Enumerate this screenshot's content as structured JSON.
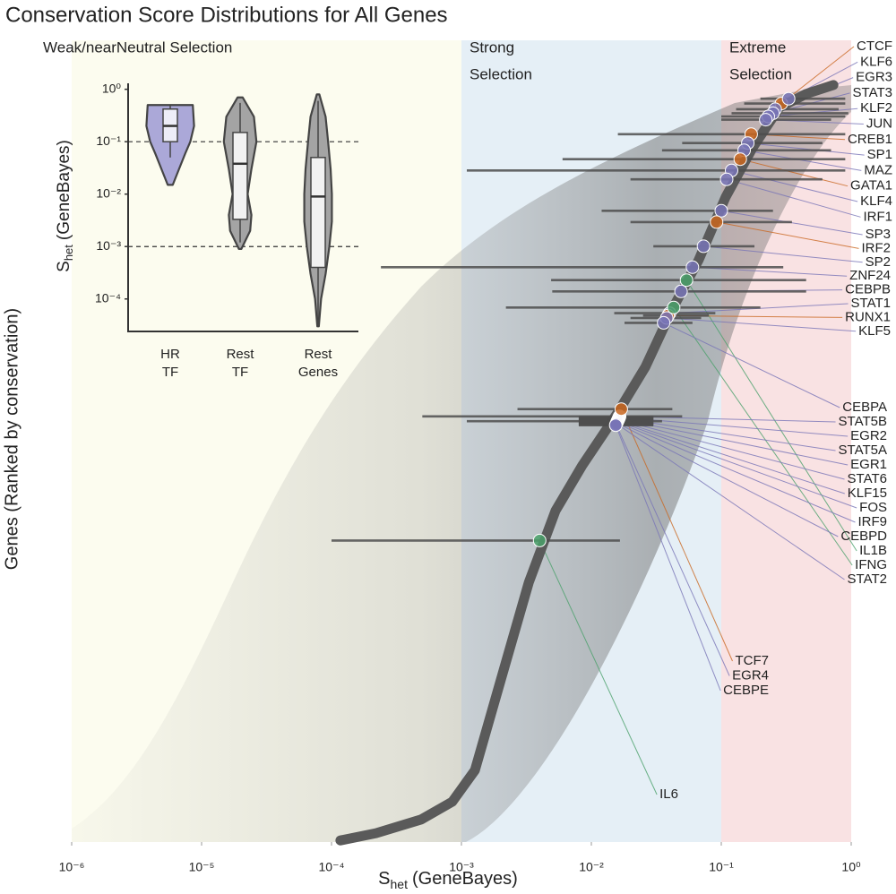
{
  "chart_data": [
    {
      "type": "scatter",
      "title": "Conservation Score Distributions for All Genes",
      "xlabel": {
        "symbol": "S",
        "subscript": "het",
        "text": "(GeneBayes)"
      },
      "ylabel": "Genes (Ranked by conservation)",
      "log_x": true,
      "xlim": [
        1e-06,
        1
      ],
      "xticks": [
        {
          "value": 1e-06,
          "label": "10⁻⁶"
        },
        {
          "value": 1e-05,
          "label": "10⁻⁵"
        },
        {
          "value": 0.0001,
          "label": "10⁻⁴"
        },
        {
          "value": 0.001,
          "label": "10⁻³"
        },
        {
          "value": 0.01,
          "label": "10⁻²"
        },
        {
          "value": 0.1,
          "label": "10⁻¹"
        },
        {
          "value": 1,
          "label": "10⁰"
        }
      ],
      "ylim": [
        0,
        1
      ],
      "regions": [
        {
          "label": [
            "Weak/nearNeutral Selection"
          ],
          "range": [
            1e-06,
            0.001
          ],
          "color": "#fcfcef"
        },
        {
          "label": [
            "Strong",
            "Selection"
          ],
          "range": [
            0.001,
            0.1
          ],
          "color": "#e5eff6"
        },
        {
          "label": [
            "Extreme",
            "Selection"
          ],
          "range": [
            0.1,
            1
          ],
          "color": "#f9e2e3"
        }
      ],
      "curve": {
        "color": "#5a5a5a",
        "x": [
          0.000117,
          0.00022,
          0.00049,
          0.00085,
          0.00127,
          0.002,
          0.0033,
          0.0053,
          0.0085,
          0.016,
          0.026,
          0.042,
          0.067,
          0.108,
          0.174,
          0.28,
          0.45,
          0.73
        ],
        "y": [
          0.002,
          0.011,
          0.028,
          0.05,
          0.089,
          0.2,
          0.322,
          0.411,
          0.467,
          0.533,
          0.589,
          0.661,
          0.722,
          0.8,
          0.861,
          0.911,
          0.928,
          0.939
        ]
      },
      "points": [
        {
          "name": "CTCF",
          "color": "#c9661f",
          "x": 0.29,
          "y": 0.916,
          "xerr": [
            0.15,
            0.9
          ]
        },
        {
          "name": "KLF6",
          "color": "#7874b6",
          "x": 0.33,
          "y": 0.922,
          "xerr": [
            0.2,
            0.9
          ]
        },
        {
          "name": "EGR3",
          "color": "#7874b6",
          "x": 0.26,
          "y": 0.909,
          "xerr": [
            0.13,
            0.8
          ]
        },
        {
          "name": "STAT3",
          "color": "#7874b6",
          "x": 0.25,
          "y": 0.904,
          "xerr": [
            0.12,
            0.95
          ]
        },
        {
          "name": "KLF2",
          "color": "#7874b6",
          "x": 0.23,
          "y": 0.9,
          "xerr": [
            0.1,
            0.9
          ]
        },
        {
          "name": "JUN",
          "color": "#7874b6",
          "x": 0.22,
          "y": 0.896,
          "xerr": [
            0.1,
            0.7
          ]
        },
        {
          "name": "CREB1",
          "color": "#c9661f",
          "x": 0.17,
          "y": 0.878,
          "xerr": [
            0.016,
            0.9
          ]
        },
        {
          "name": "SP1",
          "color": "#7874b6",
          "x": 0.16,
          "y": 0.867,
          "xerr": [
            0.05,
            0.6
          ]
        },
        {
          "name": "MAZ",
          "color": "#7874b6",
          "x": 0.15,
          "y": 0.858,
          "xerr": [
            0.035,
            0.7
          ]
        },
        {
          "name": "GATA1",
          "color": "#c9661f",
          "x": 0.14,
          "y": 0.847,
          "xerr": [
            0.006,
            0.9
          ]
        },
        {
          "name": "KLF4",
          "color": "#7874b6",
          "x": 0.12,
          "y": 0.833,
          "xerr": [
            0.0011,
            0.9
          ]
        },
        {
          "name": "IRF1",
          "color": "#7874b6",
          "x": 0.11,
          "y": 0.822,
          "xerr": [
            0.02,
            0.6
          ]
        },
        {
          "name": "SP3",
          "color": "#7874b6",
          "x": 0.1,
          "y": 0.783,
          "xerr": [
            0.012,
            0.25
          ]
        },
        {
          "name": "IRF2",
          "color": "#c9661f",
          "x": 0.092,
          "y": 0.769,
          "xerr": [
            0.02,
            0.35
          ]
        },
        {
          "name": "SP2",
          "color": "#7874b6",
          "x": 0.073,
          "y": 0.739,
          "xerr": [
            0.03,
            0.18
          ]
        },
        {
          "name": "ZNF24",
          "color": "#7874b6",
          "x": 0.06,
          "y": 0.713,
          "xerr": [
            0.00024,
            0.3
          ]
        },
        {
          "name": "CEBPB",
          "color": "#7874b6",
          "x": 0.049,
          "y": 0.683,
          "xerr": [
            0.005,
            0.45
          ]
        },
        {
          "name": "STAT1",
          "color": "#7874b6",
          "x": 0.04,
          "y": 0.656,
          "xerr": [
            0.015,
            0.09
          ]
        },
        {
          "name": "RUNX1",
          "color": "#c9661f",
          "x": 0.039,
          "y": 0.653,
          "xerr": [
            0.025,
            0.08
          ]
        },
        {
          "name": "KLF5",
          "color": "#7874b6",
          "x": 0.038,
          "y": 0.65,
          "xerr": [
            0.02,
            0.07
          ]
        },
        {
          "name": "CEBPA",
          "color": "#7874b6",
          "x": 0.036,
          "y": 0.644,
          "xerr": [
            0.018,
            0.06
          ]
        },
        {
          "name": "STAT5B",
          "color": "#7874b6",
          "x": 0.0165,
          "y": 0.528,
          "xerr": [
            0.0005,
            0.05
          ]
        },
        {
          "name": "EGR2",
          "color": "#7874b6",
          "x": 0.0164,
          "y": 0.527,
          "xerr": [
            0.008,
            0.03
          ]
        },
        {
          "name": "STAT5A",
          "color": "#7874b6",
          "x": 0.0163,
          "y": 0.526,
          "xerr": [
            0.008,
            0.03
          ]
        },
        {
          "name": "EGR1",
          "color": "#7874b6",
          "x": 0.0162,
          "y": 0.525,
          "xerr": [
            0.008,
            0.03
          ]
        },
        {
          "name": "STAT6",
          "color": "#7874b6",
          "x": 0.0161,
          "y": 0.524,
          "xerr": [
            0.008,
            0.03
          ]
        },
        {
          "name": "KLF15",
          "color": "#7874b6",
          "x": 0.016,
          "y": 0.523,
          "xerr": [
            0.008,
            0.03
          ]
        },
        {
          "name": "FOS",
          "color": "#7874b6",
          "x": 0.0159,
          "y": 0.522,
          "xerr": [
            0.0011,
            0.035
          ]
        },
        {
          "name": "IRF9",
          "color": "#7874b6",
          "x": 0.0158,
          "y": 0.521,
          "xerr": [
            0.008,
            0.03
          ]
        },
        {
          "name": "CEBPD",
          "color": "#7874b6",
          "x": 0.0157,
          "y": 0.52,
          "xerr": [
            0.008,
            0.03
          ]
        },
        {
          "name": "IL1B",
          "color": "#4aa06a",
          "x": 0.054,
          "y": 0.697,
          "xerr": [
            0.0049,
            0.45
          ]
        },
        {
          "name": "IFNG",
          "color": "#4aa06a",
          "x": 0.043,
          "y": 0.663,
          "xerr": [
            0.0022,
            0.2
          ]
        },
        {
          "name": "STAT2",
          "color": "#7874b6",
          "x": 0.0156,
          "y": 0.519,
          "xerr": [
            0.008,
            0.03
          ]
        },
        {
          "name": "TCF7",
          "color": "#c9661f",
          "x": 0.017,
          "y": 0.537,
          "xerr": [
            0.0027,
            0.042
          ]
        },
        {
          "name": "EGR4",
          "color": "#7874b6",
          "x": 0.0155,
          "y": 0.518,
          "xerr": [
            0.008,
            0.03
          ]
        },
        {
          "name": "CEBPE",
          "color": "#7874b6",
          "x": 0.0154,
          "y": 0.517,
          "xerr": [
            0.008,
            0.03
          ]
        },
        {
          "name": "IL6",
          "color": "#4aa06a",
          "x": 0.004,
          "y": 0.374,
          "xerr": [
            0.0001,
            0.0166
          ]
        }
      ]
    },
    {
      "type": "violin",
      "ylabel": {
        "symbol": "S",
        "subscript": "het",
        "text": "(GeneBayes)"
      },
      "log_y": true,
      "ylim": [
        2.4e-05,
        1.3
      ],
      "yticks": [
        {
          "value": 1,
          "label": "10⁰"
        },
        {
          "value": 0.1,
          "label": "10⁻¹"
        },
        {
          "value": 0.01,
          "label": "10⁻²"
        },
        {
          "value": 0.001,
          "label": "10⁻³"
        },
        {
          "value": 0.0001,
          "label": "10⁻⁴"
        }
      ],
      "hlines": [
        0.1,
        0.001
      ],
      "categories": [
        [
          "HR",
          "TF"
        ],
        [
          "Rest",
          "TF"
        ],
        [
          "Rest",
          "Genes"
        ]
      ],
      "violins": [
        {
          "color": "#aba8d8",
          "box_color": "#ededf8",
          "density_y": [
            0.015,
            0.03,
            0.06,
            0.1,
            0.2,
            0.5
          ],
          "density": [
            0.1,
            0.35,
            0.6,
            0.8,
            0.95,
            0.9
          ],
          "whislo": 0.05,
          "q1": 0.1,
          "median": 0.2,
          "q3": 0.42,
          "whishi": 0.5
        },
        {
          "color": "#a4a4a4",
          "box_color": "#f2f2f2",
          "density_y": [
            0.0009,
            0.002,
            0.004,
            0.01,
            0.03,
            0.1,
            0.3,
            0.7
          ],
          "density": [
            0.05,
            0.4,
            0.45,
            0.3,
            0.45,
            0.65,
            0.55,
            0.1
          ],
          "whislo": 0.0012,
          "q1": 0.0033,
          "median": 0.038,
          "q3": 0.15,
          "whishi": 0.55
        },
        {
          "color": "#a4a4a4",
          "box_color": "#f2f2f2",
          "density_y": [
            3e-05,
            0.0001,
            0.0003,
            0.001,
            0.003,
            0.01,
            0.03,
            0.1,
            0.3,
            0.8
          ],
          "density": [
            0.03,
            0.12,
            0.3,
            0.45,
            0.55,
            0.55,
            0.5,
            0.4,
            0.3,
            0.05
          ],
          "whislo": 3e-05,
          "q1": 0.0004,
          "median": 0.009,
          "q3": 0.05,
          "whishi": 0.6
        }
      ]
    }
  ]
}
